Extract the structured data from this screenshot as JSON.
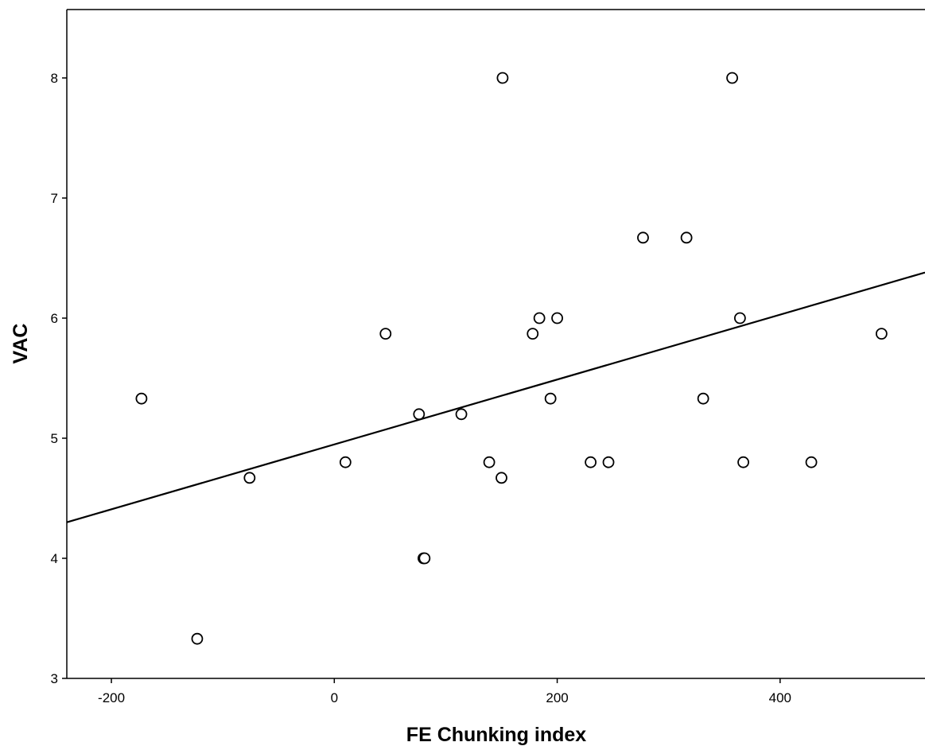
{
  "chart_data": {
    "type": "scatter",
    "title": "",
    "xlabel": "FE Chunking index",
    "ylabel": "VAC",
    "xlim": [
      -240,
      530
    ],
    "ylim": [
      3,
      8.55
    ],
    "x_ticks": [
      -200,
      0,
      200,
      400
    ],
    "x_tick_labels": [
      "-200",
      "0",
      "200",
      "400"
    ],
    "y_ticks": [
      3,
      4,
      5,
      6,
      7,
      8
    ],
    "y_tick_labels": [
      "3",
      "4",
      "5",
      "6",
      "7",
      "8"
    ],
    "grid": false,
    "legend": "none",
    "marker": "open-circle",
    "points": [
      {
        "x": -173,
        "y": 5.33
      },
      {
        "x": -123,
        "y": 3.33
      },
      {
        "x": -76,
        "y": 4.67
      },
      {
        "x": 10,
        "y": 4.8
      },
      {
        "x": 46,
        "y": 5.87
      },
      {
        "x": 76,
        "y": 5.2
      },
      {
        "x": 80,
        "y": 4.0
      },
      {
        "x": 81,
        "y": 4.0
      },
      {
        "x": 114,
        "y": 5.2
      },
      {
        "x": 139,
        "y": 4.8
      },
      {
        "x": 150,
        "y": 4.67
      },
      {
        "x": 151,
        "y": 8.0
      },
      {
        "x": 178,
        "y": 5.87
      },
      {
        "x": 184,
        "y": 6.0
      },
      {
        "x": 194,
        "y": 5.33
      },
      {
        "x": 200,
        "y": 6.0
      },
      {
        "x": 230,
        "y": 4.8
      },
      {
        "x": 246,
        "y": 4.8
      },
      {
        "x": 277,
        "y": 6.67
      },
      {
        "x": 316,
        "y": 6.67
      },
      {
        "x": 331,
        "y": 5.33
      },
      {
        "x": 357,
        "y": 8.0
      },
      {
        "x": 364,
        "y": 6.0
      },
      {
        "x": 367,
        "y": 4.8
      },
      {
        "x": 428,
        "y": 4.8
      },
      {
        "x": 491,
        "y": 5.87
      }
    ],
    "fit_line": {
      "x": [
        -240,
        530
      ],
      "y": [
        4.3,
        6.38
      ]
    },
    "colors": {
      "marker_fill": "#ffffff",
      "marker_stroke": "#000000",
      "line": "#000000",
      "axis": "#000000"
    }
  }
}
